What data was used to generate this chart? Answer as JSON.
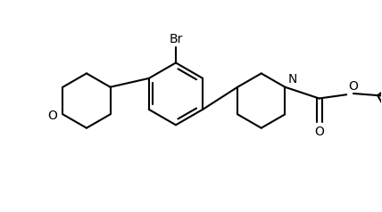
{
  "bg_color": "#ffffff",
  "line_color": "#000000",
  "line_width": 1.5,
  "font_size": 9,
  "figsize": [
    4.28,
    2.38
  ],
  "dpi": 100,
  "xlim": [
    0,
    10
  ],
  "ylim": [
    0,
    5.56
  ]
}
